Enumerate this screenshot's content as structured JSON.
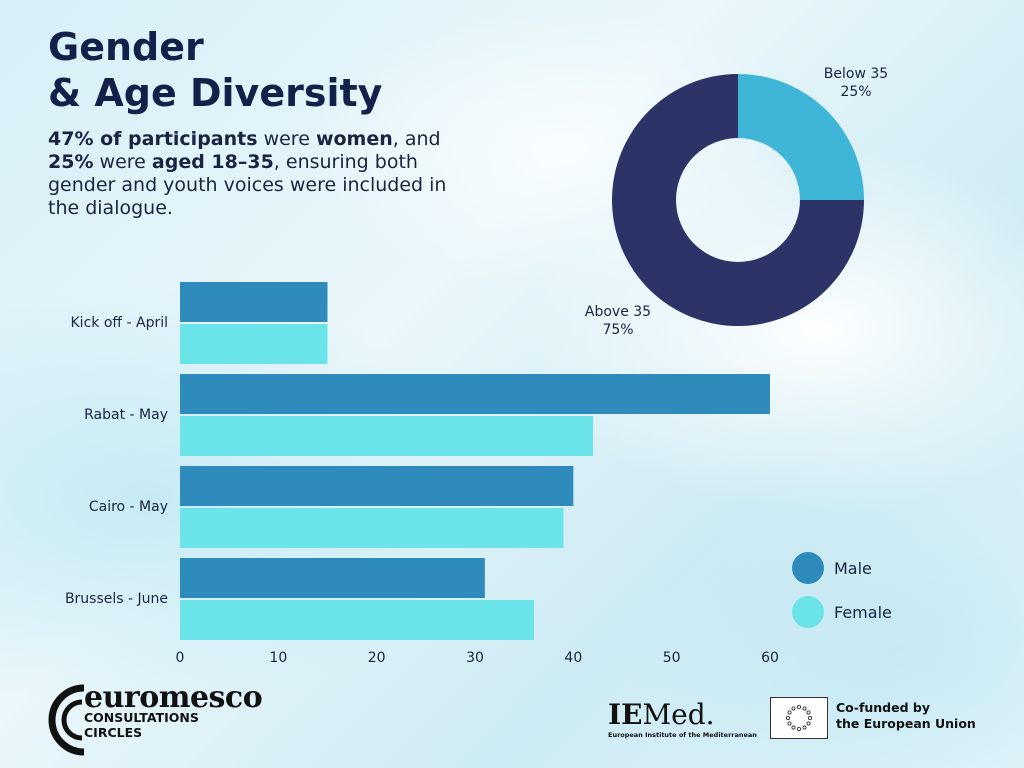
{
  "header": {
    "title_line1": "Gender",
    "title_line2": "& Age Diversity"
  },
  "description": {
    "part1": "47% of participants",
    "part2": " were ",
    "part3": "women",
    "part4": ", and ",
    "part5": "25%",
    "part6": " were ",
    "part7": "aged 18–35",
    "part8": ", ensuring both gender and youth voices were included in the dialogue."
  },
  "legend": {
    "male": "Male",
    "female": "Female"
  },
  "logos": {
    "euromesco_word": "euromesco",
    "euromesco_line1": "CONSULTATIONS",
    "euromesco_line2": "CIRCLES",
    "iemed_word_ie": "IE",
    "iemed_word_med": "Med.",
    "iemed_sub": "European Institute of the Mediterranean",
    "eu_line1": "Co-funded by",
    "eu_line2": "the European Union"
  },
  "colors": {
    "male": "#2f8bbb",
    "female": "#6ae4e8",
    "donut_below": "#3fb6d8",
    "donut_above": "#2c3366"
  },
  "chart_data": [
    {
      "type": "bar",
      "orientation": "horizontal",
      "categories": [
        "Kick off - April",
        "Rabat - May",
        "Cairo - May",
        "Brussels - June"
      ],
      "series": [
        {
          "name": "Male",
          "values": [
            15,
            60,
            40,
            31
          ]
        },
        {
          "name": "Female",
          "values": [
            15,
            42,
            39,
            36
          ]
        }
      ],
      "xlim": [
        0,
        60
      ],
      "xticks": [
        0,
        10,
        20,
        30,
        40,
        50,
        60
      ],
      "grid": false,
      "legend": "right"
    },
    {
      "type": "pie",
      "donut": true,
      "slices": [
        {
          "label": "Below 35",
          "value": 25,
          "value_label": "25%"
        },
        {
          "label": "Above 35",
          "value": 75,
          "value_label": "75%"
        }
      ]
    }
  ]
}
